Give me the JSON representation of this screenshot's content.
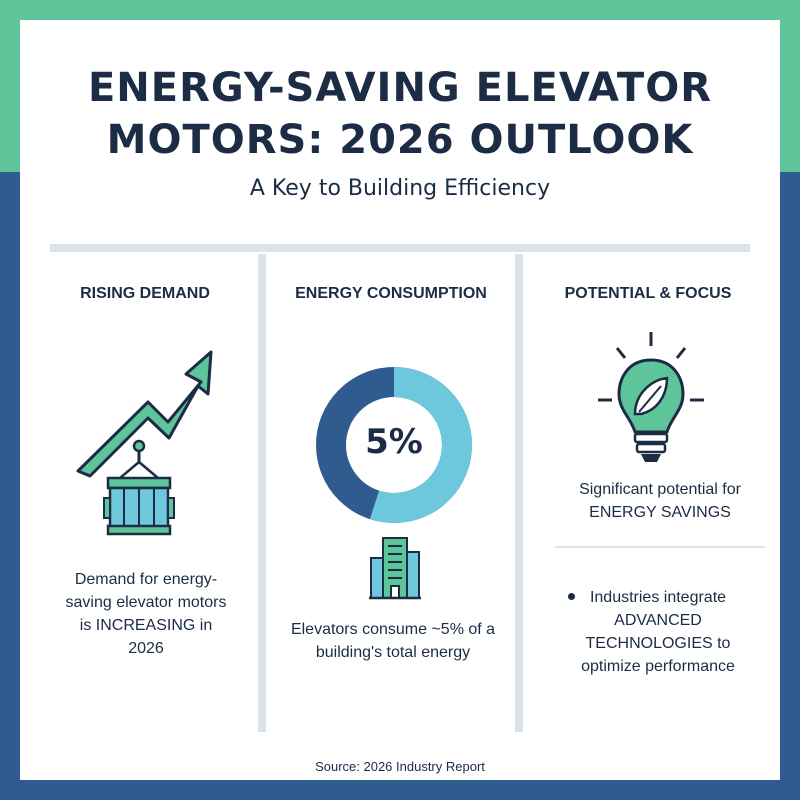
{
  "title": {
    "line1": "ENERGY-SAVING ELEVATOR",
    "line2": "MOTORS: 2026 OUTLOOK"
  },
  "subtitle": "A Key to Building Efficiency",
  "columns": [
    {
      "heading": "RISING DEMAND",
      "icon": "trend-arrow-and-elevator-icon",
      "text": "Demand for energy-saving elevator motors is INCREASING in 2026"
    },
    {
      "heading": "ENERGY CONSUMPTION",
      "icon": "donut-and-building-icon",
      "percent_label": "5%",
      "text": "Elevators consume ~5% of a building's total energy"
    },
    {
      "heading": "POTENTIAL & FOCUS",
      "icon": "lightbulb-leaf-icon",
      "text_line1": "Significant potential for",
      "text_line2": "ENERGY SAVINGS",
      "bullet": "Industries integrate ADVANCED TECHNOLOGIES to optimize performance"
    }
  ],
  "source": "Source: 2026 Industry Report",
  "colors": {
    "green": "#5ec499",
    "navy": "#2f5b8f",
    "dark_text": "#1c2c45",
    "light_blue": "#6ec8dd",
    "divider": "#dbe3e8"
  }
}
